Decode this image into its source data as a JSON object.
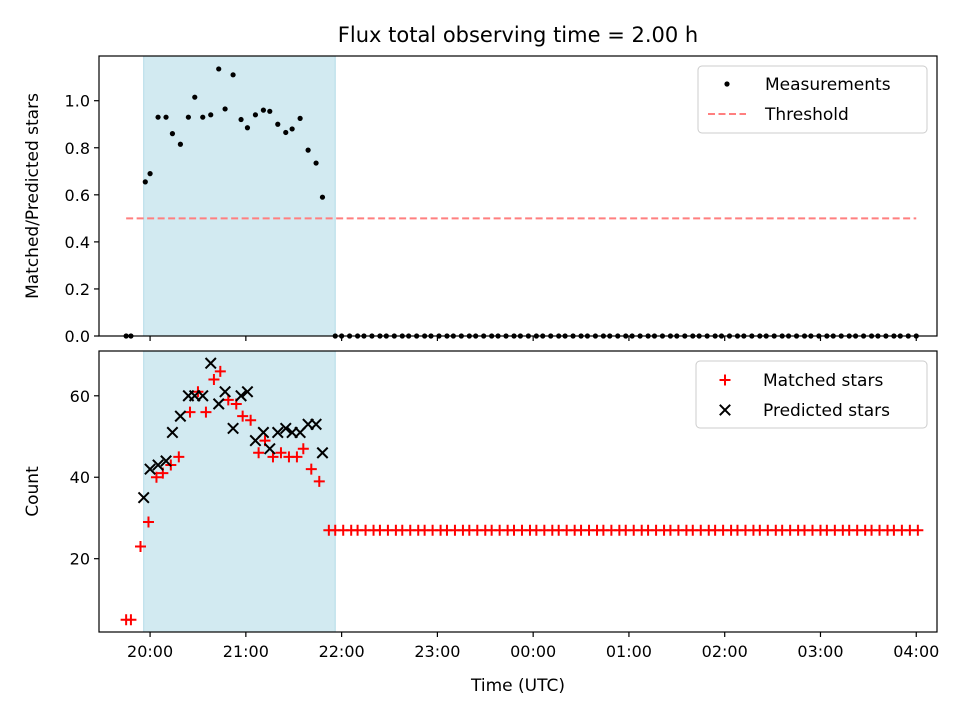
{
  "chart_data": [
    {
      "type": "scatter",
      "title": "Flux total observing time = 2.00 h",
      "ylabel": "Matched/Predicted stars",
      "xlim": [
        "19:28",
        "04:13"
      ],
      "ylim": [
        0,
        1.19
      ],
      "x_ticks": [
        "20:00",
        "21:00",
        "22:00",
        "23:00",
        "00:00",
        "01:00",
        "02:00",
        "03:00",
        "04:00"
      ],
      "y_ticks": [
        "0.0",
        "0.2",
        "0.4",
        "0.6",
        "0.8",
        "1.0"
      ],
      "legend": "top-right",
      "shaded_span": [
        "19:56",
        "21:56"
      ],
      "series": [
        {
          "name": "Measurements",
          "marker": "dot",
          "color": "#000000",
          "points": [
            [
              "19:45",
              0.0
            ],
            [
              "19:48",
              0.0
            ],
            [
              "19:57",
              0.655
            ],
            [
              "20:00",
              0.69
            ],
            [
              "20:05",
              0.93
            ],
            [
              "20:10",
              0.93
            ],
            [
              "20:14",
              0.86
            ],
            [
              "20:19",
              0.815
            ],
            [
              "20:24",
              0.93
            ],
            [
              "20:28",
              1.015
            ],
            [
              "20:33",
              0.93
            ],
            [
              "20:38",
              0.94
            ],
            [
              "20:43",
              1.135
            ],
            [
              "20:47",
              0.965
            ],
            [
              "20:52",
              1.11
            ],
            [
              "20:57",
              0.92
            ],
            [
              "21:01",
              0.885
            ],
            [
              "21:06",
              0.94
            ],
            [
              "21:11",
              0.96
            ],
            [
              "21:15",
              0.955
            ],
            [
              "21:20",
              0.9
            ],
            [
              "21:25",
              0.865
            ],
            [
              "21:29",
              0.88
            ],
            [
              "21:34",
              0.925
            ],
            [
              "21:39",
              0.79
            ],
            [
              "21:44",
              0.735
            ],
            [
              "21:48",
              0.59
            ],
            [
              "21:56",
              0.0
            ],
            [
              "22:00",
              0.0
            ],
            [
              "22:05",
              0.0
            ],
            [
              "22:10",
              0.0
            ],
            [
              "22:14",
              0.0
            ],
            [
              "22:19",
              0.0
            ],
            [
              "22:24",
              0.0
            ],
            [
              "22:28",
              0.0
            ],
            [
              "22:33",
              0.0
            ],
            [
              "22:38",
              0.0
            ],
            [
              "22:42",
              0.0
            ],
            [
              "22:47",
              0.0
            ],
            [
              "22:52",
              0.0
            ],
            [
              "22:56",
              0.0
            ],
            [
              "23:01",
              0.0
            ],
            [
              "23:06",
              0.0
            ],
            [
              "23:10",
              0.0
            ],
            [
              "23:15",
              0.0
            ],
            [
              "23:20",
              0.0
            ],
            [
              "23:24",
              0.0
            ],
            [
              "23:29",
              0.0
            ],
            [
              "23:34",
              0.0
            ],
            [
              "23:38",
              0.0
            ],
            [
              "23:43",
              0.0
            ],
            [
              "23:48",
              0.0
            ],
            [
              "23:52",
              0.0
            ],
            [
              "23:57",
              0.0
            ],
            [
              "00:02",
              0.0
            ],
            [
              "00:06",
              0.0
            ],
            [
              "00:11",
              0.0
            ],
            [
              "00:16",
              0.0
            ],
            [
              "00:20",
              0.0
            ],
            [
              "00:25",
              0.0
            ],
            [
              "00:30",
              0.0
            ],
            [
              "00:34",
              0.0
            ],
            [
              "00:39",
              0.0
            ],
            [
              "00:44",
              0.0
            ],
            [
              "00:48",
              0.0
            ],
            [
              "00:53",
              0.0
            ],
            [
              "00:58",
              0.0
            ],
            [
              "01:02",
              0.0
            ],
            [
              "01:07",
              0.0
            ],
            [
              "01:12",
              0.0
            ],
            [
              "01:16",
              0.0
            ],
            [
              "01:21",
              0.0
            ],
            [
              "01:26",
              0.0
            ],
            [
              "01:30",
              0.0
            ],
            [
              "01:35",
              0.0
            ],
            [
              "01:40",
              0.0
            ],
            [
              "01:44",
              0.0
            ],
            [
              "01:49",
              0.0
            ],
            [
              "01:54",
              0.0
            ],
            [
              "01:58",
              0.0
            ],
            [
              "02:03",
              0.0
            ],
            [
              "02:08",
              0.0
            ],
            [
              "02:12",
              0.0
            ],
            [
              "02:17",
              0.0
            ],
            [
              "02:22",
              0.0
            ],
            [
              "02:26",
              0.0
            ],
            [
              "02:31",
              0.0
            ],
            [
              "02:36",
              0.0
            ],
            [
              "02:40",
              0.0
            ],
            [
              "02:45",
              0.0
            ],
            [
              "02:50",
              0.0
            ],
            [
              "02:54",
              0.0
            ],
            [
              "02:59",
              0.0
            ],
            [
              "03:04",
              0.0
            ],
            [
              "03:08",
              0.0
            ],
            [
              "03:13",
              0.0
            ],
            [
              "03:18",
              0.0
            ],
            [
              "03:22",
              0.0
            ],
            [
              "03:27",
              0.0
            ],
            [
              "03:32",
              0.0
            ],
            [
              "03:36",
              0.0
            ],
            [
              "03:41",
              0.0
            ],
            [
              "03:46",
              0.0
            ],
            [
              "03:50",
              0.0
            ],
            [
              "03:55",
              0.0
            ],
            [
              "04:00",
              0.0
            ]
          ]
        },
        {
          "name": "Threshold",
          "type": "line",
          "style": "dashed",
          "color": "#ff7f7f",
          "points": [
            [
              "19:45",
              0.5
            ],
            [
              "04:00",
              0.5
            ]
          ]
        }
      ]
    },
    {
      "type": "scatter",
      "xlabel": "Time (UTC)",
      "ylabel": "Count",
      "xlim": [
        "19:28",
        "04:13"
      ],
      "ylim": [
        2,
        71
      ],
      "x_ticks": [
        "20:00",
        "21:00",
        "22:00",
        "23:00",
        "00:00",
        "01:00",
        "02:00",
        "03:00",
        "04:00"
      ],
      "y_ticks": [
        "20",
        "40",
        "60"
      ],
      "legend": "top-right",
      "shaded_span": [
        "19:56",
        "21:56"
      ],
      "series": [
        {
          "name": "Matched stars",
          "marker": "plus",
          "color": "#ff0000",
          "points": [
            [
              "19:45",
              5
            ],
            [
              "19:48",
              5
            ],
            [
              "19:54",
              23
            ],
            [
              "19:59",
              29
            ],
            [
              "20:04",
              40
            ],
            [
              "20:08",
              41
            ],
            [
              "20:13",
              43
            ],
            [
              "20:18",
              45
            ],
            [
              "20:25",
              56
            ],
            [
              "20:30",
              61
            ],
            [
              "20:35",
              56
            ],
            [
              "20:40",
              64
            ],
            [
              "20:44",
              66
            ],
            [
              "20:49",
              59
            ],
            [
              "20:54",
              58
            ],
            [
              "20:58",
              55
            ],
            [
              "21:03",
              54
            ],
            [
              "21:08",
              46
            ],
            [
              "21:12",
              49
            ],
            [
              "21:17",
              45
            ],
            [
              "21:22",
              46
            ],
            [
              "21:27",
              45
            ],
            [
              "21:32",
              45
            ],
            [
              "21:36",
              47
            ],
            [
              "21:41",
              42
            ],
            [
              "21:46",
              39
            ],
            [
              "21:52",
              27
            ],
            [
              "21:56",
              27
            ],
            [
              "22:01",
              27
            ],
            [
              "22:06",
              27
            ],
            [
              "22:10",
              27
            ],
            [
              "22:15",
              27
            ],
            [
              "22:20",
              27
            ],
            [
              "22:24",
              27
            ],
            [
              "22:29",
              27
            ],
            [
              "22:34",
              27
            ],
            [
              "22:38",
              27
            ],
            [
              "22:43",
              27
            ],
            [
              "22:48",
              27
            ],
            [
              "22:52",
              27
            ],
            [
              "22:57",
              27
            ],
            [
              "23:02",
              27
            ],
            [
              "23:06",
              27
            ],
            [
              "23:11",
              27
            ],
            [
              "23:16",
              27
            ],
            [
              "23:20",
              27
            ],
            [
              "23:25",
              27
            ],
            [
              "23:30",
              27
            ],
            [
              "23:34",
              27
            ],
            [
              "23:39",
              27
            ],
            [
              "23:44",
              27
            ],
            [
              "23:48",
              27
            ],
            [
              "23:53",
              27
            ],
            [
              "23:58",
              27
            ],
            [
              "00:02",
              27
            ],
            [
              "00:07",
              27
            ],
            [
              "00:12",
              27
            ],
            [
              "00:16",
              27
            ],
            [
              "00:21",
              27
            ],
            [
              "00:26",
              27
            ],
            [
              "00:30",
              27
            ],
            [
              "00:35",
              27
            ],
            [
              "00:40",
              27
            ],
            [
              "00:44",
              27
            ],
            [
              "00:49",
              27
            ],
            [
              "00:54",
              27
            ],
            [
              "00:58",
              27
            ],
            [
              "01:03",
              27
            ],
            [
              "01:08",
              27
            ],
            [
              "01:12",
              27
            ],
            [
              "01:17",
              27
            ],
            [
              "01:22",
              27
            ],
            [
              "01:26",
              27
            ],
            [
              "01:31",
              27
            ],
            [
              "01:36",
              27
            ],
            [
              "01:40",
              27
            ],
            [
              "01:45",
              27
            ],
            [
              "01:50",
              27
            ],
            [
              "01:54",
              27
            ],
            [
              "01:59",
              27
            ],
            [
              "02:04",
              27
            ],
            [
              "02:08",
              27
            ],
            [
              "02:13",
              27
            ],
            [
              "02:18",
              27
            ],
            [
              "02:22",
              27
            ],
            [
              "02:27",
              27
            ],
            [
              "02:32",
              27
            ],
            [
              "02:36",
              27
            ],
            [
              "02:41",
              27
            ],
            [
              "02:46",
              27
            ],
            [
              "02:50",
              27
            ],
            [
              "02:55",
              27
            ],
            [
              "03:00",
              27
            ],
            [
              "03:04",
              27
            ],
            [
              "03:09",
              27
            ],
            [
              "03:14",
              27
            ],
            [
              "03:18",
              27
            ],
            [
              "03:23",
              27
            ],
            [
              "03:28",
              27
            ],
            [
              "03:32",
              27
            ],
            [
              "03:37",
              27
            ],
            [
              "03:42",
              27
            ],
            [
              "03:46",
              27
            ],
            [
              "03:51",
              27
            ],
            [
              "03:56",
              27
            ],
            [
              "04:01",
              27
            ]
          ]
        },
        {
          "name": "Predicted stars",
          "marker": "x",
          "color": "#000000",
          "points": [
            [
              "19:56",
              35
            ],
            [
              "20:00",
              42
            ],
            [
              "20:05",
              43
            ],
            [
              "20:10",
              44
            ],
            [
              "20:14",
              51
            ],
            [
              "20:19",
              55
            ],
            [
              "20:24",
              60
            ],
            [
              "20:28",
              60
            ],
            [
              "20:33",
              60
            ],
            [
              "20:38",
              68
            ],
            [
              "20:43",
              58
            ],
            [
              "20:47",
              61
            ],
            [
              "20:52",
              52
            ],
            [
              "20:57",
              60
            ],
            [
              "21:01",
              61
            ],
            [
              "21:06",
              49
            ],
            [
              "21:11",
              51
            ],
            [
              "21:15",
              47
            ],
            [
              "21:20",
              51
            ],
            [
              "21:25",
              52
            ],
            [
              "21:29",
              51
            ],
            [
              "21:34",
              51
            ],
            [
              "21:39",
              53
            ],
            [
              "21:44",
              53
            ],
            [
              "21:48",
              46
            ]
          ]
        }
      ]
    }
  ]
}
